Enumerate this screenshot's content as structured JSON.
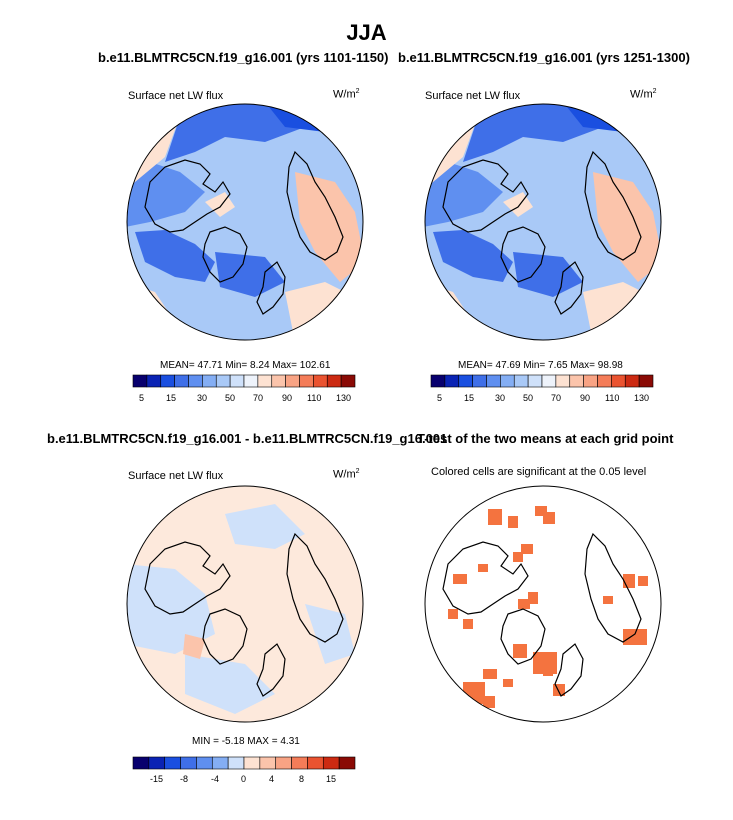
{
  "title": "JJA",
  "panels": [
    {
      "title": "b.e11.BLMTRC5CN.f19_g16.001 (yrs 1101-1150)",
      "variable": "Surface net LW flux",
      "units_base": "W/m",
      "units_exp": "2",
      "stats": "MEAN=  47.71  Min=   8.24  Max= 102.61",
      "colorbar_labels": [
        "5",
        "15",
        "30",
        "50",
        "70",
        "90",
        "110",
        "130"
      ]
    },
    {
      "title": "b.e11.BLMTRC5CN.f19_g16.001 (yrs 1251-1300)",
      "variable": "Surface net LW flux",
      "units_base": "W/m",
      "units_exp": "2",
      "stats": "MEAN=  47.69  Min=   7.65  Max=  98.98",
      "colorbar_labels": [
        "5",
        "15",
        "30",
        "50",
        "70",
        "90",
        "110",
        "130"
      ]
    },
    {
      "title": "b.e11.BLMTRC5CN.f19_g16.001 - b.e11.BLMTRC5CN.f19_g16.001",
      "variable": "Surface net LW flux",
      "units_base": "W/m",
      "units_exp": "2",
      "stats": "MIN =  -5.18 MAX =   4.31",
      "colorbar_labels": [
        "-15",
        "-8",
        "-4",
        "0",
        "4",
        "8",
        "15"
      ]
    },
    {
      "title": "T-test of the two means at each grid point",
      "subtitle": "Colored cells are significant at the 0.05 level"
    }
  ],
  "chart_data": [
    {
      "type": "heatmap",
      "projection": "north polar stereographic",
      "title": "b.e11.BLMTRC5CN.f19_g16.001 (yrs 1101-1150)",
      "variable": "Surface net LW flux",
      "units": "W/m2",
      "mean": 47.71,
      "min": 8.24,
      "max": 102.61,
      "contour_levels": [
        5,
        10,
        15,
        20,
        30,
        40,
        50,
        60,
        70,
        80,
        90,
        100,
        110,
        120,
        130
      ],
      "colors": [
        "#08006e",
        "#0a23b4",
        "#1a4fe0",
        "#3f6fe8",
        "#5f8ff0",
        "#84aef4",
        "#a9c9f7",
        "#cfe1fa",
        "#eef3fb",
        "#fde2d2",
        "#fbc4ab",
        "#f8a384",
        "#f47c58",
        "#ea5330",
        "#cc2a12",
        "#8a0a05"
      ]
    },
    {
      "type": "heatmap",
      "projection": "north polar stereographic",
      "title": "b.e11.BLMTRC5CN.f19_g16.001 (yrs 1251-1300)",
      "variable": "Surface net LW flux",
      "units": "W/m2",
      "mean": 47.69,
      "min": 7.65,
      "max": 98.98,
      "contour_levels": [
        5,
        10,
        15,
        20,
        30,
        40,
        50,
        60,
        70,
        80,
        90,
        100,
        110,
        120,
        130
      ],
      "colors": [
        "#08006e",
        "#0a23b4",
        "#1a4fe0",
        "#3f6fe8",
        "#5f8ff0",
        "#84aef4",
        "#a9c9f7",
        "#cfe1fa",
        "#eef3fb",
        "#fde2d2",
        "#fbc4ab",
        "#f8a384",
        "#f47c58",
        "#ea5330",
        "#cc2a12",
        "#8a0a05"
      ]
    },
    {
      "type": "heatmap",
      "projection": "north polar stereographic",
      "title": "b.e11.BLMTRC5CN.f19_g16.001 - b.e11.BLMTRC5CN.f19_g16.001",
      "variable": "Surface net LW flux",
      "units": "W/m2",
      "min": -5.18,
      "max": 4.31,
      "contour_levels": [
        -15,
        -10,
        -8,
        -6,
        -4,
        -2,
        0,
        2,
        4,
        6,
        8,
        10,
        15
      ],
      "colors": [
        "#08006e",
        "#0a23b4",
        "#1a4fe0",
        "#3f6fe8",
        "#5f8ff0",
        "#84aef4",
        "#cfe1fa",
        "#fde2d2",
        "#fbc4ab",
        "#f8a384",
        "#f47c58",
        "#ea5330",
        "#cc2a12",
        "#8a0a05"
      ]
    },
    {
      "type": "heatmap",
      "projection": "north polar stereographic",
      "title": "T-test of the two means at each grid point",
      "subtitle": "Colored cells are significant at the 0.05 level",
      "significance_level": 0.05,
      "significant_color": "#f4733f"
    }
  ]
}
